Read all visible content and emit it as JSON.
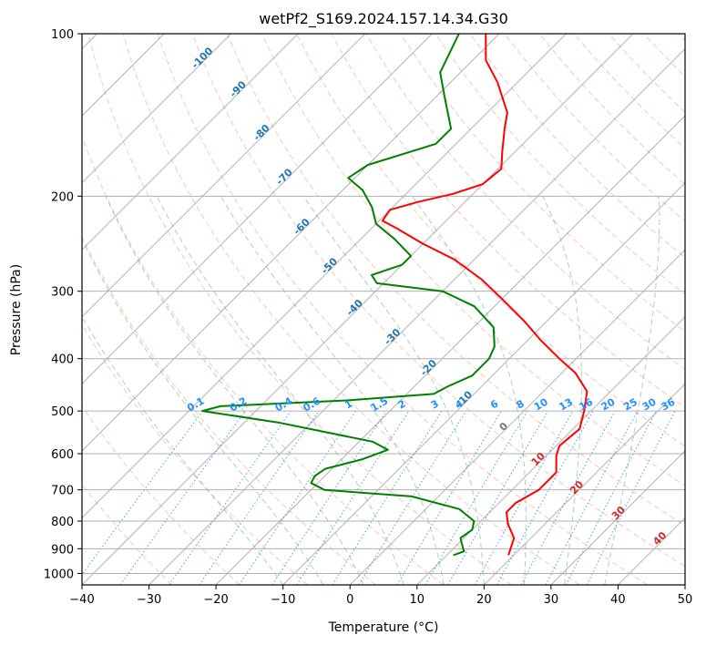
{
  "chart_data": {
    "type": "line",
    "title": "wetPf2_S169.2024.157.14.34.G30",
    "xlabel": "Temperature (°C)",
    "ylabel": "Pressure (hPa)",
    "xlim": [
      -40,
      50
    ],
    "ylim": [
      1050,
      100
    ],
    "y_scale": "log",
    "x_ticks": [
      -40,
      -30,
      -20,
      -10,
      0,
      10,
      20,
      30,
      40,
      50
    ],
    "y_ticks": [
      100,
      200,
      300,
      400,
      500,
      600,
      700,
      800,
      900,
      1000
    ],
    "skew": 45,
    "grid": true,
    "colors": {
      "temperature": "#ff0000",
      "dewpoint": "#008000",
      "dry_adiabat": "#ff7f50",
      "moist_adiabat": "#2e8b57",
      "mixing_ratio": "#1e90ff",
      "isotherm": "#808080",
      "label_dry": "#1f77b4",
      "label_mix": "#1e90ff",
      "label_warm": "#d62728"
    },
    "series": [
      {
        "name": "",
        "key": "temperature",
        "points": [
          [
            19.2,
            925
          ],
          [
            17.5,
            860
          ],
          [
            14.5,
            810
          ],
          [
            12.5,
            770
          ],
          [
            12.5,
            740
          ],
          [
            14.0,
            700
          ],
          [
            14.0,
            650
          ],
          [
            11.5,
            605
          ],
          [
            10.5,
            580
          ],
          [
            11.0,
            540
          ],
          [
            9.0,
            500
          ],
          [
            6.5,
            460
          ],
          [
            2.0,
            425
          ],
          [
            -2.5,
            400
          ],
          [
            -8.0,
            370
          ],
          [
            -13.5,
            340
          ],
          [
            -20.0,
            310
          ],
          [
            -26.0,
            285
          ],
          [
            -33.0,
            262
          ],
          [
            -40.0,
            245
          ],
          [
            -46.0,
            230
          ],
          [
            -49.5,
            222
          ],
          [
            -50.0,
            212
          ],
          [
            -47.0,
            205
          ],
          [
            -43.0,
            198
          ],
          [
            -40.0,
            190
          ],
          [
            -39.5,
            178
          ],
          [
            -42.0,
            165
          ],
          [
            -45.0,
            150
          ],
          [
            -47.0,
            140
          ],
          [
            -53.0,
            123
          ],
          [
            -58.0,
            112
          ],
          [
            -62.0,
            100
          ]
        ]
      },
      {
        "name": "",
        "key": "dewpoint",
        "points": [
          [
            11.0,
            925
          ],
          [
            12.0,
            910
          ],
          [
            10.5,
            880
          ],
          [
            9.5,
            860
          ],
          [
            10.0,
            830
          ],
          [
            9.0,
            800
          ],
          [
            5.0,
            760
          ],
          [
            -4.0,
            720
          ],
          [
            -18.0,
            700
          ],
          [
            -21.0,
            680
          ],
          [
            -21.5,
            660
          ],
          [
            -21.0,
            640
          ],
          [
            -17.0,
            615
          ],
          [
            -14.5,
            590
          ],
          [
            -18.0,
            570
          ],
          [
            -35.0,
            525
          ],
          [
            -48.0,
            500
          ],
          [
            -46.0,
            490
          ],
          [
            -28.0,
            478
          ],
          [
            -16.0,
            465
          ],
          [
            -15.0,
            450
          ],
          [
            -13.0,
            430
          ],
          [
            -13.0,
            400
          ],
          [
            -14.0,
            380
          ],
          [
            -17.0,
            350
          ],
          [
            -23.0,
            320
          ],
          [
            -30.0,
            300
          ],
          [
            -41.0,
            290
          ],
          [
            -43.0,
            280
          ],
          [
            -40.0,
            268
          ],
          [
            -40.0,
            258
          ],
          [
            -45.0,
            240
          ],
          [
            -50.0,
            225
          ],
          [
            -53.0,
            210
          ],
          [
            -57.0,
            195
          ],
          [
            -61.0,
            185
          ],
          [
            -60.0,
            175
          ],
          [
            -53.0,
            160
          ],
          [
            -53.0,
            150
          ],
          [
            -59.0,
            130
          ],
          [
            -63.0,
            118
          ],
          [
            -66.0,
            100
          ]
        ]
      }
    ],
    "dry_adiabat_labels": [
      {
        "text": "-100",
        "t": -100,
        "p": 112
      },
      {
        "text": "-90",
        "t": -90,
        "p": 128
      },
      {
        "text": "-80",
        "t": -80,
        "p": 154
      },
      {
        "text": "-70",
        "t": -70,
        "p": 186
      },
      {
        "text": "-60",
        "t": -60,
        "p": 230
      },
      {
        "text": "-50",
        "t": -50,
        "p": 272
      },
      {
        "text": "-40",
        "t": -40,
        "p": 325
      },
      {
        "text": "-30",
        "t": -30,
        "p": 368
      },
      {
        "text": "-20",
        "t": -20,
        "p": 420
      },
      {
        "text": "-10",
        "t": -10,
        "p": 480
      }
    ],
    "warm_adiabat_labels": [
      {
        "text": "0",
        "t": 0,
        "p": 540
      },
      {
        "text": "10",
        "t": 10,
        "p": 620
      },
      {
        "text": "20",
        "t": 20,
        "p": 700
      },
      {
        "text": "30",
        "t": 30,
        "p": 780
      },
      {
        "text": "40",
        "t": 40,
        "p": 870
      }
    ],
    "mixing_ratio_labels": [
      "0.1",
      "0.2",
      "0.4",
      "0.6",
      "1",
      "1.5",
      "2",
      "3",
      "4",
      "6",
      "8",
      "10",
      "13",
      "16",
      "20",
      "25",
      "30",
      "36"
    ],
    "mixing_ratio_label_pressure": 500
  }
}
